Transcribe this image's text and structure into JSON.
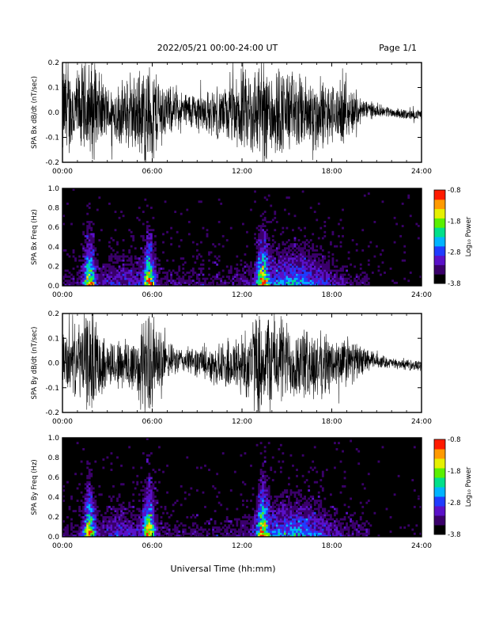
{
  "header": {
    "title": "2022/05/21  00:00-24:00 UT",
    "page": "Page 1/1"
  },
  "footer": {
    "xlabel": "Universal Time (hh:mm)"
  },
  "colorbar": {
    "label": "Log₁₀ Power",
    "ticks": [
      "-0.8",
      "-1.8",
      "-2.8",
      "-3.8"
    ],
    "range": [
      -3.8,
      -0.8
    ],
    "colors": [
      "#000000",
      "#3a006a",
      "#5a10c8",
      "#1f3cff",
      "#00b4ff",
      "#00e08a",
      "#5af000",
      "#e6f000",
      "#ff9a00",
      "#ff1a00"
    ]
  },
  "chart_data": [
    {
      "type": "line",
      "title": "",
      "ylabel": "SPA Bx dB/dt (nT/sec)",
      "xlabel": "",
      "xlim": [
        "00:00",
        "24:00"
      ],
      "xticks": [
        "00:00",
        "06:00",
        "12:00",
        "18:00",
        "24:00"
      ],
      "ylim": [
        -0.2,
        0.2
      ],
      "yticks": [
        "-0.2",
        "-0.1",
        "0.0",
        "0.1",
        "0.2"
      ],
      "envelope_hours": [
        0,
        1,
        1.5,
        2,
        3,
        4,
        5,
        5.5,
        6,
        7,
        8,
        9,
        10,
        11,
        12,
        13,
        13.5,
        14,
        15,
        16,
        17,
        18,
        19,
        20,
        21,
        22,
        23,
        24
      ],
      "envelope_amplitude": [
        0.2,
        0.16,
        0.2,
        0.2,
        0.1,
        0.13,
        0.16,
        0.2,
        0.2,
        0.1,
        0.07,
        0.08,
        0.09,
        0.11,
        0.16,
        0.2,
        0.2,
        0.2,
        0.17,
        0.15,
        0.15,
        0.12,
        0.12,
        0.05,
        0.025,
        0.02,
        0.02,
        0.02
      ]
    },
    {
      "type": "heatmap",
      "title": "",
      "ylabel": "SPA Bx Freq (Hz)",
      "xlabel": "",
      "xlim": [
        "00:00",
        "24:00"
      ],
      "xticks": [
        "00:00",
        "06:00",
        "12:00",
        "18:00",
        "24:00"
      ],
      "ylim": [
        0.0,
        1.0
      ],
      "yticks": [
        "0.0",
        "0.2",
        "0.4",
        "0.6",
        "0.8",
        "1.0"
      ],
      "zlim": [
        -3.8,
        -0.8
      ],
      "bursts_hours": [
        1.8,
        5.8,
        13.4
      ]
    },
    {
      "type": "line",
      "title": "",
      "ylabel": "SPA By dB/dt (nT/sec)",
      "xlabel": "",
      "xlim": [
        "00:00",
        "24:00"
      ],
      "xticks": [
        "00:00",
        "06:00",
        "12:00",
        "18:00",
        "24:00"
      ],
      "ylim": [
        -0.2,
        0.2
      ],
      "yticks": [
        "-0.2",
        "-0.1",
        "0.0",
        "0.1",
        "0.2"
      ],
      "envelope_hours": [
        0,
        1,
        1.5,
        2,
        3,
        4,
        5,
        5.5,
        6,
        7,
        8,
        9,
        10,
        11,
        12,
        13,
        13.5,
        14,
        15,
        16,
        17,
        18,
        19,
        20,
        21,
        22,
        23,
        24
      ],
      "envelope_amplitude": [
        0.12,
        0.14,
        0.2,
        0.2,
        0.09,
        0.11,
        0.14,
        0.2,
        0.2,
        0.07,
        0.05,
        0.06,
        0.07,
        0.1,
        0.13,
        0.2,
        0.2,
        0.2,
        0.16,
        0.14,
        0.14,
        0.11,
        0.1,
        0.06,
        0.03,
        0.02,
        0.02,
        0.02
      ]
    },
    {
      "type": "heatmap",
      "title": "",
      "ylabel": "SPA By Freq (Hz)",
      "xlabel": "",
      "xlim": [
        "00:00",
        "24:00"
      ],
      "xticks": [
        "00:00",
        "06:00",
        "12:00",
        "18:00",
        "24:00"
      ],
      "ylim": [
        0.0,
        1.0
      ],
      "yticks": [
        "0.0",
        "0.2",
        "0.4",
        "0.6",
        "0.8",
        "1.0"
      ],
      "zlim": [
        -3.8,
        -0.8
      ],
      "bursts_hours": [
        1.8,
        5.8,
        13.4
      ]
    }
  ]
}
